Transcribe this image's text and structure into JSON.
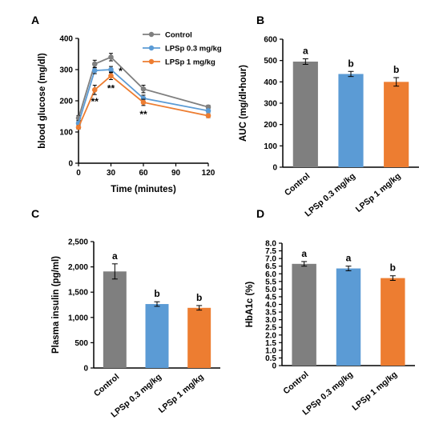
{
  "chart_data": [
    {
      "panel": "A",
      "type": "line",
      "xlabel": "Time (minutes)",
      "ylabel": "blood glucose (mg/dl)",
      "x": [
        0,
        15,
        30,
        60,
        120
      ],
      "xticks": [
        0,
        30,
        60,
        90,
        120
      ],
      "xlim": [
        0,
        120
      ],
      "ylim": [
        0,
        400
      ],
      "yticks": [
        0,
        100,
        200,
        300,
        400
      ],
      "legend_position": "top-right",
      "series": [
        {
          "name": "Control",
          "color": "#7f7f7f",
          "values": [
            145,
            318,
            340,
            238,
            180
          ],
          "errors": [
            8,
            12,
            12,
            12,
            6
          ]
        },
        {
          "name": "LPSp 0.3 mg/kg",
          "color": "#5b9bd5",
          "values": [
            128,
            297,
            300,
            208,
            168
          ],
          "errors": [
            6,
            10,
            10,
            10,
            6
          ]
        },
        {
          "name": "LPSp 1 mg/kg",
          "color": "#ed7d31",
          "values": [
            115,
            235,
            280,
            195,
            152
          ],
          "errors": [
            6,
            15,
            12,
            10,
            6
          ]
        }
      ],
      "annotations": [
        {
          "x": 30,
          "y": 300,
          "text": "*"
        },
        {
          "x": 15,
          "y": 202,
          "text": "**"
        },
        {
          "x": 30,
          "y": 245,
          "text": "**"
        },
        {
          "x": 60,
          "y": 162,
          "text": "**"
        }
      ]
    },
    {
      "panel": "B",
      "type": "bar",
      "ylabel": "AUC (mg/dl•hour)",
      "categories": [
        "Control",
        "LPSp 0.3 mg/kg",
        "LPSp 1 mg/kg"
      ],
      "values": [
        495,
        437,
        400
      ],
      "errors": [
        13,
        12,
        20
      ],
      "colors": [
        "#7f7f7f",
        "#5b9bd5",
        "#ed7d31"
      ],
      "letters": [
        "a",
        "b",
        "b"
      ],
      "ylim": [
        0,
        600
      ],
      "yticks": [
        0,
        100,
        200,
        300,
        400,
        500,
        600
      ],
      "ytick_labels": [
        "0",
        "100",
        "200",
        "300",
        "400",
        "500",
        "600"
      ]
    },
    {
      "panel": "C",
      "type": "bar",
      "ylabel": "Plasma insulin (pg/ml)",
      "categories": [
        "Control",
        "LPSp 0.3 mg/kg",
        "LPSp 1 mg/kg"
      ],
      "values": [
        1910,
        1265,
        1190
      ],
      "errors": [
        150,
        45,
        45
      ],
      "colors": [
        "#7f7f7f",
        "#5b9bd5",
        "#ed7d31"
      ],
      "letters": [
        "a",
        "b",
        "b"
      ],
      "ylim": [
        0,
        2500
      ],
      "yticks": [
        0,
        500,
        1000,
        1500,
        2000,
        2500
      ],
      "ytick_labels": [
        "0",
        "500",
        "1,000",
        "1,500",
        "2,000",
        "2,500"
      ]
    },
    {
      "panel": "D",
      "type": "bar",
      "ylabel": "HbA1c (%)",
      "categories": [
        "Control",
        "LPSp 0.3 mg/kg",
        "LPSp 1 mg/kg"
      ],
      "values": [
        6.65,
        6.35,
        5.72
      ],
      "errors": [
        0.15,
        0.15,
        0.15
      ],
      "colors": [
        "#7f7f7f",
        "#5b9bd5",
        "#ed7d31"
      ],
      "letters": [
        "a",
        "a",
        "b"
      ],
      "ylim": [
        0,
        8
      ],
      "yticks": [
        0,
        0.5,
        1,
        1.5,
        2,
        2.5,
        3,
        3.5,
        4,
        4.5,
        5,
        5.5,
        6,
        6.5,
        7,
        7.5,
        8
      ],
      "ytick_labels": [
        "0",
        "0.5",
        "1.0",
        "1.5",
        "2.0",
        "2.5",
        "3.0",
        "3.5",
        "4.0",
        "4.5",
        "5.0",
        "5.5",
        "6.0",
        "6.5",
        "7.0",
        "7.5",
        "8.0"
      ]
    }
  ]
}
